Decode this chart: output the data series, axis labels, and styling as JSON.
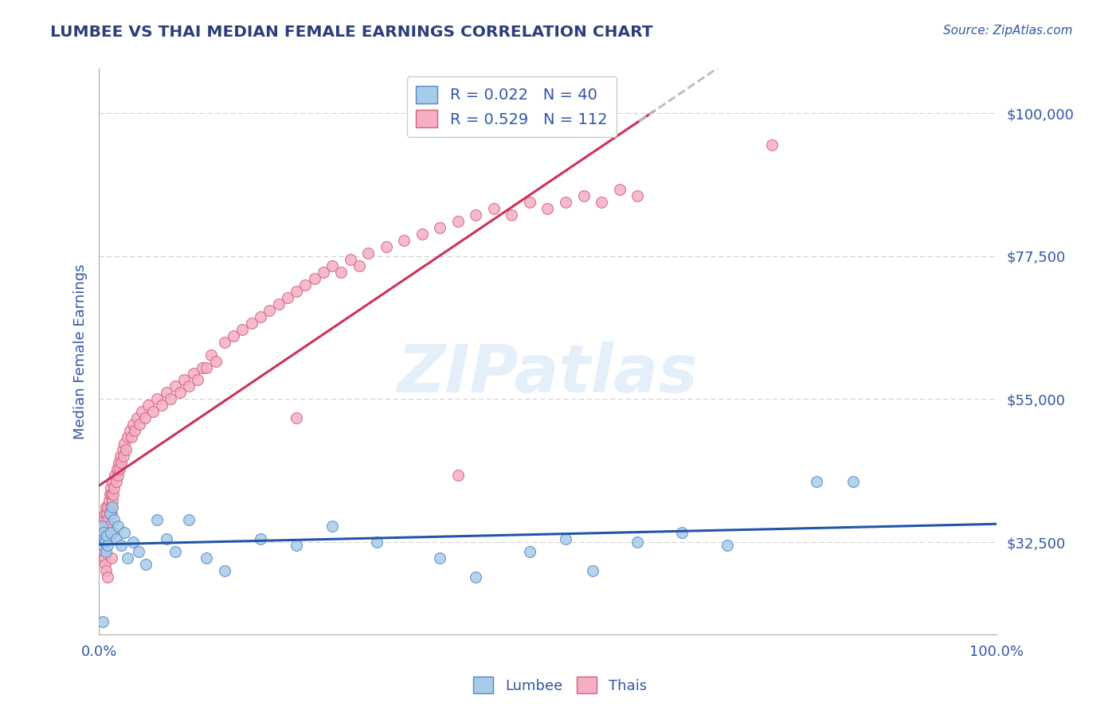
{
  "title": "LUMBEE VS THAI MEDIAN FEMALE EARNINGS CORRELATION CHART",
  "source": "Source: ZipAtlas.com",
  "ylabel": "Median Female Earnings",
  "xlim": [
    0.0,
    1.0
  ],
  "ylim": [
    18000,
    107000
  ],
  "yticks": [
    32500,
    55000,
    77500,
    100000
  ],
  "ytick_labels": [
    "$32,500",
    "$55,000",
    "$77,500",
    "$100,000"
  ],
  "lumbee_color": "#a8cce8",
  "thai_color": "#f4afc5",
  "lumbee_edge": "#5588cc",
  "thai_edge": "#d4607a",
  "regression_lumbee_color": "#2255aa",
  "regression_thai_color": "#cc3355",
  "r_lumbee": 0.022,
  "n_lumbee": 40,
  "r_thai": 0.529,
  "n_thai": 112,
  "legend_lumbee": "Lumbee",
  "legend_thai": "Thais",
  "background_color": "#ffffff",
  "grid_color": "#cccccc",
  "title_color": "#2c3e7a",
  "tick_color": "#3355aa",
  "lumbee_x": [
    0.003,
    0.004,
    0.005,
    0.006,
    0.007,
    0.008,
    0.009,
    0.01,
    0.012,
    0.013,
    0.015,
    0.017,
    0.019,
    0.021,
    0.025,
    0.028,
    0.032,
    0.038,
    0.044,
    0.052,
    0.065,
    0.075,
    0.085,
    0.1,
    0.12,
    0.14,
    0.18,
    0.22,
    0.26,
    0.31,
    0.38,
    0.42,
    0.48,
    0.52,
    0.55,
    0.6,
    0.65,
    0.7,
    0.8,
    0.84
  ],
  "lumbee_y": [
    35000,
    32000,
    34000,
    33000,
    32500,
    31000,
    33500,
    32000,
    37000,
    34000,
    38000,
    36000,
    33000,
    35000,
    32000,
    34000,
    30000,
    32500,
    31000,
    29000,
    36000,
    33000,
    31000,
    36000,
    30000,
    28000,
    33000,
    32000,
    35000,
    32500,
    30000,
    27000,
    31000,
    33000,
    28000,
    32500,
    34000,
    32000,
    42000,
    42000
  ],
  "lumbee_y_low": [
    20000
  ],
  "lumbee_x_low": [
    0.003
  ],
  "thai_x": [
    0.003,
    0.004,
    0.005,
    0.005,
    0.006,
    0.006,
    0.007,
    0.007,
    0.008,
    0.008,
    0.009,
    0.009,
    0.01,
    0.01,
    0.011,
    0.011,
    0.012,
    0.012,
    0.013,
    0.013,
    0.014,
    0.014,
    0.015,
    0.015,
    0.016,
    0.017,
    0.018,
    0.019,
    0.02,
    0.021,
    0.022,
    0.023,
    0.024,
    0.025,
    0.026,
    0.027,
    0.028,
    0.03,
    0.032,
    0.034,
    0.036,
    0.038,
    0.04,
    0.042,
    0.045,
    0.048,
    0.051,
    0.055,
    0.06,
    0.065,
    0.07,
    0.075,
    0.08,
    0.085,
    0.09,
    0.095,
    0.1,
    0.105,
    0.11,
    0.115,
    0.12,
    0.125,
    0.13,
    0.14,
    0.15,
    0.16,
    0.17,
    0.18,
    0.19,
    0.2,
    0.21,
    0.22,
    0.23,
    0.24,
    0.25,
    0.26,
    0.27,
    0.28,
    0.29,
    0.3,
    0.32,
    0.34,
    0.36,
    0.38,
    0.4,
    0.42,
    0.44,
    0.46,
    0.48,
    0.5,
    0.52,
    0.54,
    0.56,
    0.58,
    0.6,
    0.003,
    0.004,
    0.005,
    0.006,
    0.007,
    0.008,
    0.01,
    0.012,
    0.014,
    0.016,
    0.75,
    0.22,
    0.4
  ],
  "thai_y": [
    33000,
    32000,
    34000,
    35000,
    33000,
    36000,
    34000,
    37000,
    35000,
    38000,
    34000,
    37000,
    36000,
    38000,
    35000,
    39000,
    37000,
    40000,
    38000,
    41000,
    37000,
    40000,
    39000,
    42000,
    40000,
    41000,
    43000,
    42000,
    44000,
    43000,
    45000,
    44000,
    46000,
    45000,
    47000,
    46000,
    48000,
    47000,
    49000,
    50000,
    49000,
    51000,
    50000,
    52000,
    51000,
    53000,
    52000,
    54000,
    53000,
    55000,
    54000,
    56000,
    55000,
    57000,
    56000,
    58000,
    57000,
    59000,
    58000,
    60000,
    60000,
    62000,
    61000,
    64000,
    65000,
    66000,
    67000,
    68000,
    69000,
    70000,
    71000,
    72000,
    73000,
    74000,
    75000,
    76000,
    75000,
    77000,
    76000,
    78000,
    79000,
    80000,
    81000,
    82000,
    83000,
    84000,
    85000,
    84000,
    86000,
    85000,
    86000,
    87000,
    86000,
    88000,
    87000,
    33000,
    32000,
    31000,
    30000,
    29000,
    28000,
    27000,
    33000,
    30000,
    34000,
    95000,
    52000,
    43000
  ]
}
